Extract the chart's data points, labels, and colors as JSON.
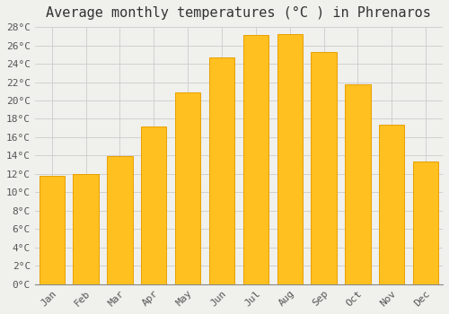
{
  "title": "Average monthly temperatures (°C ) in Phrenaros",
  "months": [
    "Jan",
    "Feb",
    "Mar",
    "Apr",
    "May",
    "Jun",
    "Jul",
    "Aug",
    "Sep",
    "Oct",
    "Nov",
    "Dec"
  ],
  "values": [
    11.8,
    12.0,
    13.9,
    17.2,
    20.9,
    24.7,
    27.1,
    27.2,
    25.3,
    21.8,
    17.4,
    13.4
  ],
  "bar_color": "#FFC020",
  "bar_edge_color": "#E8A000",
  "background_color": "#F0F0EC",
  "grid_color": "#CCCCCC",
  "ylim": [
    0,
    28
  ],
  "ytick_step": 2,
  "title_fontsize": 11,
  "tick_fontsize": 8,
  "font_family": "monospace",
  "bar_width": 0.75
}
